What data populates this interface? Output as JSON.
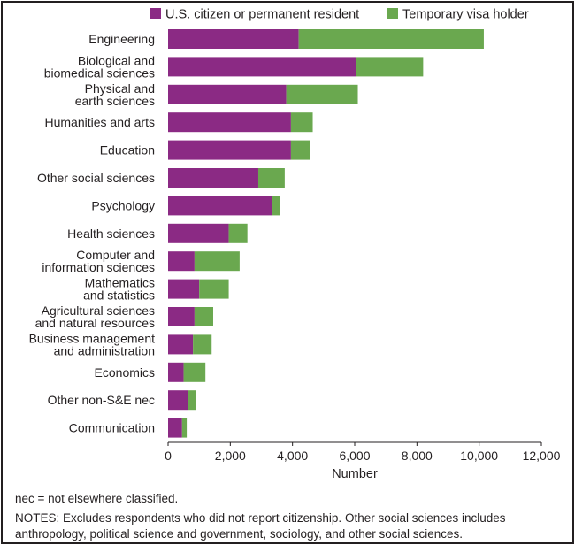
{
  "chart_data": {
    "type": "bar",
    "orientation": "horizontal",
    "stacked": true,
    "categories": [
      [
        "Engineering"
      ],
      [
        "Biological and",
        "biomedical sciences"
      ],
      [
        "Physical and",
        "earth sciences"
      ],
      [
        "Humanities and arts"
      ],
      [
        "Education"
      ],
      [
        "Other social sciences"
      ],
      [
        "Psychology"
      ],
      [
        "Health sciences"
      ],
      [
        "Computer and",
        "information sciences"
      ],
      [
        "Mathematics",
        "and statistics"
      ],
      [
        "Agricultural sciences",
        "and natural resources"
      ],
      [
        "Business management",
        "and administration"
      ],
      [
        "Economics"
      ],
      [
        "Other non-S&E nec"
      ],
      [
        "Communication"
      ]
    ],
    "series": [
      {
        "name": "U.S. citizen or permanent resident",
        "color": "#8b2a84",
        "values": [
          4200,
          6050,
          3800,
          3950,
          3950,
          2900,
          3350,
          1950,
          850,
          1000,
          850,
          800,
          500,
          650,
          450
        ]
      },
      {
        "name": "Temporary visa holder",
        "color": "#6aa84f",
        "values": [
          5950,
          2150,
          2300,
          700,
          600,
          850,
          250,
          600,
          1450,
          950,
          600,
          600,
          700,
          250,
          150
        ]
      }
    ],
    "xlabel": "Number",
    "ylabel": "",
    "xlim": [
      0,
      12000
    ],
    "xticks": [
      0,
      2000,
      4000,
      6000,
      8000,
      10000,
      12000
    ],
    "xtick_labels": [
      "0",
      "2,000",
      "4,000",
      "6,000",
      "8,000",
      "10,000",
      "12,000"
    ],
    "grid": false,
    "legend_position": "top"
  },
  "notes": {
    "nec": "nec = not elsewhere classified.",
    "main": "NOTES: Excludes respondents who did not report citizenship. Other social sciences includes anthropology, political science and government, sociology, and other social sciences."
  }
}
